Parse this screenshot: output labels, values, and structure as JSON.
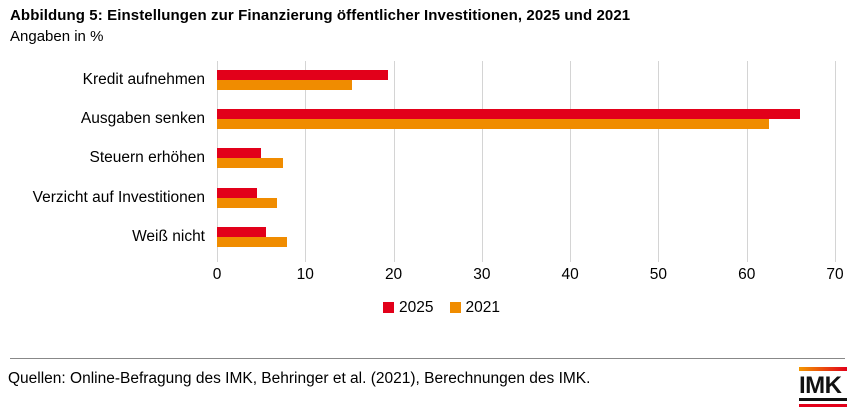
{
  "chart_data": {
    "type": "bar",
    "orientation": "horizontal",
    "title": "Abbildung 5: Einstellungen zur Finanzierung öffentlicher Investitionen, 2025 und 2021",
    "subtitle": "Angaben in %",
    "categories": [
      "Kredit aufnehmen",
      "Ausgaben senken",
      "Steuern erhöhen",
      "Verzicht auf Investitionen",
      "Weiß nicht"
    ],
    "series": [
      {
        "name": "2025",
        "color": "#e2001a",
        "values": [
          19.4,
          66.0,
          5.0,
          4.5,
          5.5
        ]
      },
      {
        "name": "2021",
        "color": "#f08c00",
        "values": [
          15.3,
          62.5,
          7.5,
          6.8,
          7.9
        ]
      }
    ],
    "xlim": [
      0,
      70
    ],
    "xticks": [
      0,
      10,
      20,
      30,
      40,
      50,
      60,
      70
    ],
    "grid": true,
    "legend_position": "bottom-center",
    "gridline_color": "#d4d4d4"
  },
  "footer": {
    "source": "Quellen: Online-Befragung des IMK, Behringer et al. (2021), Berechnungen des IMK.",
    "logo_text": "IMK"
  }
}
